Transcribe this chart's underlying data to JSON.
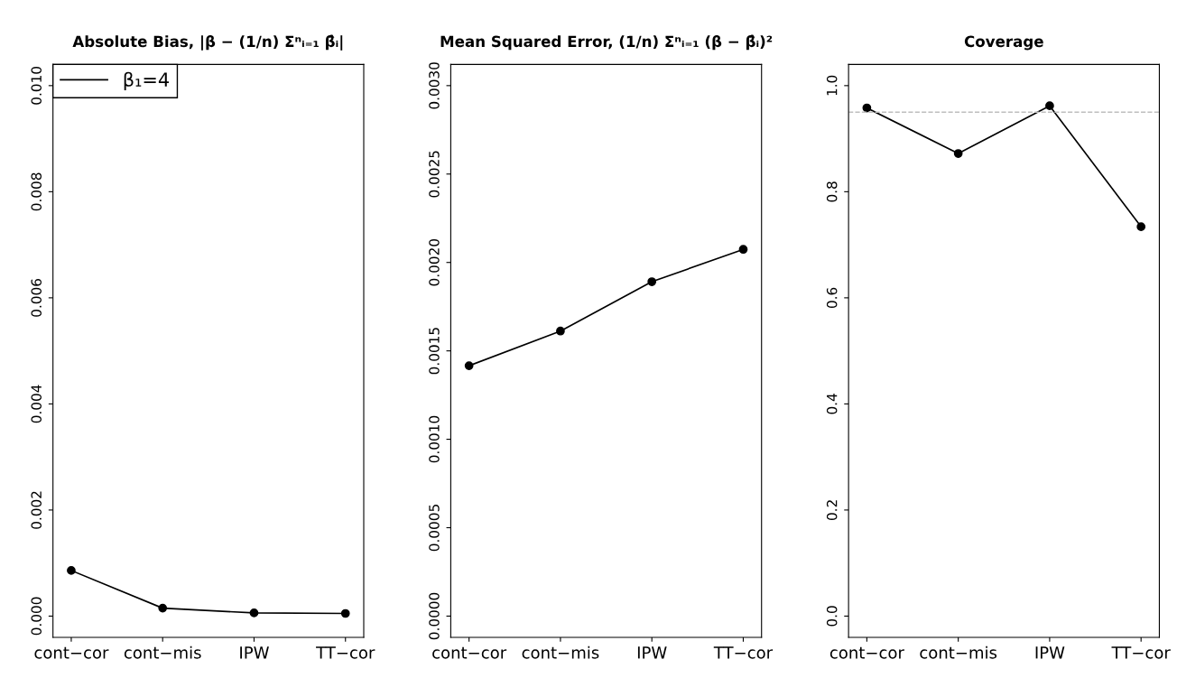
{
  "chart_data": [
    {
      "type": "line",
      "title": "Absolute Bias, |β − (1/n) Σⁿᵢ₌₁ β̂ᵢ|",
      "categories": [
        "cont−cor",
        "cont−mis",
        "IPW",
        "TT−cor"
      ],
      "series": [
        {
          "name": "β₁=4",
          "color": "#000000",
          "values": [
            0.00086,
            0.00015,
            6e-05,
            5e-05
          ]
        }
      ],
      "ylim": [
        -0.0004,
        0.0104
      ],
      "yticks": [
        {
          "value": 0,
          "label": "0.000"
        },
        {
          "value": 0.002,
          "label": "0.002"
        },
        {
          "value": 0.004,
          "label": "0.004"
        },
        {
          "value": 0.006,
          "label": "0.006"
        },
        {
          "value": 0.008,
          "label": "0.008"
        },
        {
          "value": 0.01,
          "label": "0.010"
        }
      ],
      "marker": "circle",
      "line_style": "solid",
      "legend": "top left",
      "grid": false
    },
    {
      "type": "line",
      "title": "Mean Squared Error, (1/n) Σⁿᵢ₌₁ (β − β̂ᵢ)²",
      "categories": [
        "cont−cor",
        "cont−mis",
        "IPW",
        "TT−cor"
      ],
      "series": [
        {
          "color": "#000000",
          "values": [
            0.001416,
            0.001612,
            0.001891,
            0.002074
          ]
        }
      ],
      "ylim": [
        -0.00012,
        0.00312
      ],
      "yticks": [
        {
          "value": 0,
          "label": "0.0000"
        },
        {
          "value": 0.0005,
          "label": "0.0005"
        },
        {
          "value": 0.001,
          "label": "0.0010"
        },
        {
          "value": 0.0015,
          "label": "0.0015"
        },
        {
          "value": 0.002,
          "label": "0.0020"
        },
        {
          "value": 0.0025,
          "label": "0.0025"
        },
        {
          "value": 0.003,
          "label": "0.0030"
        }
      ],
      "marker": "circle",
      "line_style": "solid",
      "grid": false
    },
    {
      "type": "line",
      "title": "Coverage",
      "categories": [
        "cont−cor",
        "cont−mis",
        "IPW",
        "TT−cor"
      ],
      "series": [
        {
          "color": "#000000",
          "values": [
            0.958,
            0.872,
            0.962,
            0.734
          ]
        }
      ],
      "ylim": [
        -0.04,
        1.04
      ],
      "yticks": [
        {
          "value": 0,
          "label": "0.0"
        },
        {
          "value": 0.2,
          "label": "0.2"
        },
        {
          "value": 0.4,
          "label": "0.4"
        },
        {
          "value": 0.6,
          "label": "0.6"
        },
        {
          "value": 0.8,
          "label": "0.8"
        },
        {
          "value": 1,
          "label": "1.0"
        }
      ],
      "ref_lines": [
        {
          "axis": "y",
          "value": 0.95,
          "color": "#bebebe",
          "line_style": "dashed"
        }
      ],
      "marker": "circle",
      "line_style": "solid",
      "grid": false
    }
  ]
}
